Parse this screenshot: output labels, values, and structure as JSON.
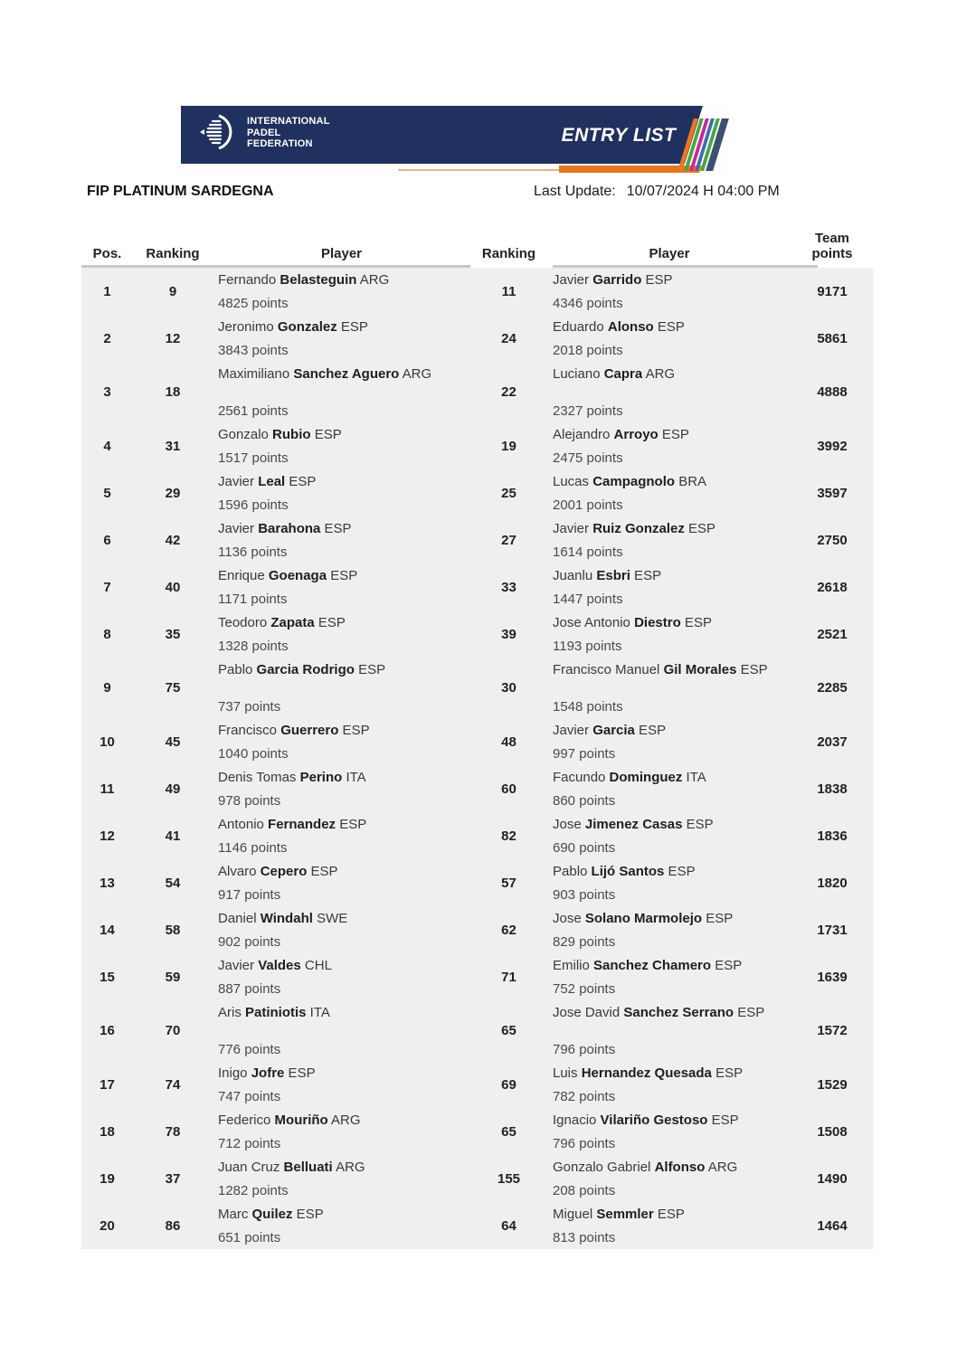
{
  "banner": {
    "logo": {
      "line1": "INTERNATIONAL",
      "line2": "PADEL",
      "line3": "FEDERATION"
    },
    "entry_list_label": "ENTRY LIST",
    "colors": {
      "navy": "#20305f",
      "orange": "#e87722",
      "stripes": [
        "#e87722",
        "#4aa53c",
        "#c5299b",
        "#3a6db5",
        "#4aa53c",
        "#3d4f72"
      ]
    }
  },
  "title": "FIP PLATINUM SARDEGNA",
  "last_update_label": "Last Update:",
  "last_update_value": "10/07/2024 H 04:00 PM",
  "table": {
    "headers": {
      "pos": "Pos.",
      "ranking1": "Ranking",
      "player1": "Player",
      "ranking2": "Ranking",
      "player2": "Player",
      "team_line1": "Team",
      "team_line2": "points"
    },
    "rows": [
      {
        "pos": "1",
        "r1": "9",
        "p1": {
          "first": "Fernando",
          "last": "Belasteguin",
          "country": "ARG",
          "points": "4825 points"
        },
        "r2": "11",
        "p2": {
          "first": "Javier",
          "last": "Garrido",
          "country": "ESP",
          "points": "4346 points"
        },
        "team": "9171",
        "tall": false
      },
      {
        "pos": "2",
        "r1": "12",
        "p1": {
          "first": "Jeronimo",
          "last": "Gonzalez",
          "country": "ESP",
          "points": "3843 points"
        },
        "r2": "24",
        "p2": {
          "first": "Eduardo",
          "last": "Alonso",
          "country": "ESP",
          "points": "2018 points"
        },
        "team": "5861",
        "tall": false
      },
      {
        "pos": "3",
        "r1": "18",
        "p1": {
          "first": "Maximiliano",
          "last": "Sanchez Aguero",
          "country": "ARG",
          "points": "2561 points"
        },
        "r2": "22",
        "p2": {
          "first": "Luciano",
          "last": "Capra",
          "country": "ARG",
          "points": "2327 points"
        },
        "team": "4888",
        "tall": true
      },
      {
        "pos": "4",
        "r1": "31",
        "p1": {
          "first": "Gonzalo",
          "last": "Rubio",
          "country": "ESP",
          "points": "1517 points"
        },
        "r2": "19",
        "p2": {
          "first": "Alejandro",
          "last": "Arroyo",
          "country": "ESP",
          "points": "2475 points"
        },
        "team": "3992",
        "tall": false
      },
      {
        "pos": "5",
        "r1": "29",
        "p1": {
          "first": "Javier",
          "last": "Leal",
          "country": "ESP",
          "points": "1596 points"
        },
        "r2": "25",
        "p2": {
          "first": "Lucas",
          "last": "Campagnolo",
          "country": "BRA",
          "points": "2001 points"
        },
        "team": "3597",
        "tall": false
      },
      {
        "pos": "6",
        "r1": "42",
        "p1": {
          "first": "Javier",
          "last": "Barahona",
          "country": "ESP",
          "points": "1136 points"
        },
        "r2": "27",
        "p2": {
          "first": "Javier",
          "last": "Ruiz Gonzalez",
          "country": "ESP",
          "points": "1614 points"
        },
        "team": "2750",
        "tall": false
      },
      {
        "pos": "7",
        "r1": "40",
        "p1": {
          "first": "Enrique",
          "last": "Goenaga",
          "country": "ESP",
          "points": "1171 points"
        },
        "r2": "33",
        "p2": {
          "first": "Juanlu",
          "last": "Esbri",
          "country": "ESP",
          "points": "1447 points"
        },
        "team": "2618",
        "tall": false
      },
      {
        "pos": "8",
        "r1": "35",
        "p1": {
          "first": "Teodoro",
          "last": "Zapata",
          "country": "ESP",
          "points": "1328 points"
        },
        "r2": "39",
        "p2": {
          "first": "Jose Antonio",
          "last": "Diestro",
          "country": "ESP",
          "points": "1193 points"
        },
        "team": "2521",
        "tall": false
      },
      {
        "pos": "9",
        "r1": "75",
        "p1": {
          "first": "Pablo",
          "last": "Garcia Rodrigo",
          "country": "ESP",
          "points": "737 points"
        },
        "r2": "30",
        "p2": {
          "first": "Francisco Manuel",
          "last": "Gil Morales",
          "country": "ESP",
          "points": "1548 points"
        },
        "team": "2285",
        "tall": true
      },
      {
        "pos": "10",
        "r1": "45",
        "p1": {
          "first": "Francisco",
          "last": "Guerrero",
          "country": "ESP",
          "points": "1040 points"
        },
        "r2": "48",
        "p2": {
          "first": "Javier",
          "last": "Garcia",
          "country": "ESP",
          "points": "997 points"
        },
        "team": "2037",
        "tall": false
      },
      {
        "pos": "11",
        "r1": "49",
        "p1": {
          "first": "Denis Tomas",
          "last": "Perino",
          "country": "ITA",
          "points": "978 points"
        },
        "r2": "60",
        "p2": {
          "first": "Facundo",
          "last": "Dominguez",
          "country": "ITA",
          "points": "860 points"
        },
        "team": "1838",
        "tall": false
      },
      {
        "pos": "12",
        "r1": "41",
        "p1": {
          "first": "Antonio",
          "last": "Fernandez",
          "country": "ESP",
          "points": "1146 points"
        },
        "r2": "82",
        "p2": {
          "first": "Jose",
          "last": "Jimenez Casas",
          "country": "ESP",
          "points": "690 points"
        },
        "team": "1836",
        "tall": false
      },
      {
        "pos": "13",
        "r1": "54",
        "p1": {
          "first": "Alvaro",
          "last": "Cepero",
          "country": "ESP",
          "points": "917 points"
        },
        "r2": "57",
        "p2": {
          "first": "Pablo",
          "last": "Lijó Santos",
          "country": "ESP",
          "points": "903 points"
        },
        "team": "1820",
        "tall": false
      },
      {
        "pos": "14",
        "r1": "58",
        "p1": {
          "first": "Daniel",
          "last": "Windahl",
          "country": "SWE",
          "points": "902 points"
        },
        "r2": "62",
        "p2": {
          "first": "Jose",
          "last": "Solano Marmolejo",
          "country": "ESP",
          "points": "829 points"
        },
        "team": "1731",
        "tall": false
      },
      {
        "pos": "15",
        "r1": "59",
        "p1": {
          "first": "Javier",
          "last": "Valdes",
          "country": "CHL",
          "points": "887 points"
        },
        "r2": "71",
        "p2": {
          "first": "Emilio",
          "last": "Sanchez Chamero",
          "country": "ESP",
          "points": "752 points"
        },
        "team": "1639",
        "tall": false
      },
      {
        "pos": "16",
        "r1": "70",
        "p1": {
          "first": "Aris",
          "last": "Patiniotis",
          "country": "ITA",
          "points": "776 points"
        },
        "r2": "65",
        "p2": {
          "first": "Jose David",
          "last": "Sanchez Serrano",
          "country": "ESP",
          "points": "796 points"
        },
        "team": "1572",
        "tall": true
      },
      {
        "pos": "17",
        "r1": "74",
        "p1": {
          "first": "Inigo",
          "last": "Jofre",
          "country": "ESP",
          "points": "747 points"
        },
        "r2": "69",
        "p2": {
          "first": "Luis",
          "last": "Hernandez Quesada",
          "country": "ESP",
          "points": "782 points"
        },
        "team": "1529",
        "tall": false
      },
      {
        "pos": "18",
        "r1": "78",
        "p1": {
          "first": "Federico",
          "last": "Mouriño",
          "country": "ARG",
          "points": "712 points"
        },
        "r2": "65",
        "p2": {
          "first": "Ignacio",
          "last": "Vilariño Gestoso",
          "country": "ESP",
          "points": "796 points"
        },
        "team": "1508",
        "tall": false
      },
      {
        "pos": "19",
        "r1": "37",
        "p1": {
          "first": "Juan Cruz",
          "last": "Belluati",
          "country": "ARG",
          "points": "1282 points"
        },
        "r2": "155",
        "p2": {
          "first": "Gonzalo Gabriel",
          "last": "Alfonso",
          "country": "ARG",
          "points": "208 points"
        },
        "team": "1490",
        "tall": false
      },
      {
        "pos": "20",
        "r1": "86",
        "p1": {
          "first": "Marc",
          "last": "Quilez",
          "country": "ESP",
          "points": "651 points"
        },
        "r2": "64",
        "p2": {
          "first": "Miguel",
          "last": "Semmler",
          "country": "ESP",
          "points": "813 points"
        },
        "team": "1464",
        "tall": false
      }
    ]
  }
}
